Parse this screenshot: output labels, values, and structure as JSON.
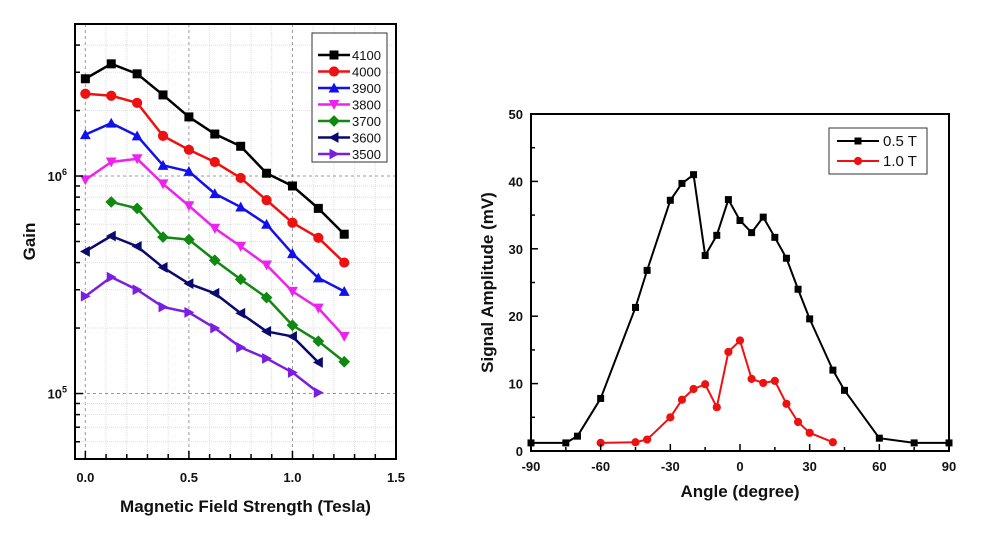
{
  "chart_data": [
    {
      "type": "line",
      "title": "",
      "xlabel": "Magnetic Field Strength (Tesla)",
      "ylabel": "Gain",
      "xscale": "linear",
      "yscale": "log",
      "xlim": [
        -0.05,
        1.5
      ],
      "ylim": [
        50000,
        5000000
      ],
      "xticks": [
        0.0,
        0.5,
        1.0,
        1.5
      ],
      "xtick_labels": [
        "0.0",
        "0.5",
        "1.0",
        "1.5"
      ],
      "yticks": [
        100000,
        1000000
      ],
      "ytick_labels": [
        {
          "base": "10",
          "exp": "5"
        },
        {
          "base": "10",
          "exp": "6"
        }
      ],
      "grid": true,
      "legend_position": "top-right",
      "series": [
        {
          "name": "4100",
          "color": "#000000",
          "marker": "square",
          "x": [
            0,
            0.125,
            0.25,
            0.375,
            0.5,
            0.625,
            0.75,
            0.875,
            1.0,
            1.125,
            1.25
          ],
          "y": [
            2800000,
            3280000,
            2950000,
            2360000,
            1870000,
            1560000,
            1370000,
            1030000,
            900000,
            710000,
            540000
          ]
        },
        {
          "name": "4000",
          "color": "#ee1111",
          "marker": "circle",
          "x": [
            0,
            0.125,
            0.25,
            0.375,
            0.5,
            0.625,
            0.75,
            0.875,
            1.0,
            1.125,
            1.25
          ],
          "y": [
            2390000,
            2340000,
            2170000,
            1530000,
            1320000,
            1160000,
            980000,
            775000,
            610000,
            520000,
            400000
          ]
        },
        {
          "name": "3900",
          "color": "#1111ee",
          "marker": "triangle-up",
          "x": [
            0,
            0.125,
            0.25,
            0.375,
            0.5,
            0.625,
            0.75,
            0.875,
            1.0,
            1.125,
            1.25
          ],
          "y": [
            1550000,
            1750000,
            1530000,
            1120000,
            1050000,
            830000,
            720000,
            600000,
            440000,
            340000,
            295000
          ]
        },
        {
          "name": "3800",
          "color": "#ee22ee",
          "marker": "triangle-down",
          "x": [
            0,
            0.125,
            0.25,
            0.375,
            0.5,
            0.625,
            0.75,
            0.875,
            1.0,
            1.125,
            1.25
          ],
          "y": [
            960000,
            1160000,
            1200000,
            920000,
            730000,
            575000,
            475000,
            390000,
            295000,
            247000,
            183000
          ]
        },
        {
          "name": "3700",
          "color": "#118811",
          "marker": "diamond",
          "x": [
            0.125,
            0.25,
            0.375,
            0.5,
            0.625,
            0.75,
            0.875,
            1.0,
            1.125,
            1.25
          ],
          "y": [
            760000,
            710000,
            524000,
            510000,
            410000,
            335000,
            276000,
            206000,
            174000,
            140000
          ]
        },
        {
          "name": "3600",
          "color": "#0a0a6e",
          "marker": "triangle-left",
          "x": [
            0,
            0.125,
            0.25,
            0.375,
            0.5,
            0.625,
            0.75,
            0.875,
            1.0,
            1.125
          ],
          "y": [
            450000,
            530000,
            475000,
            380000,
            320000,
            289000,
            234000,
            193000,
            183000,
            139000
          ]
        },
        {
          "name": "3500",
          "color": "#7a1ee0",
          "marker": "triangle-right",
          "x": [
            0,
            0.125,
            0.25,
            0.375,
            0.5,
            0.625,
            0.75,
            0.875,
            1.0,
            1.125
          ],
          "y": [
            280000,
            343000,
            300000,
            250000,
            236000,
            200000,
            163000,
            145000,
            125000,
            101000
          ]
        }
      ]
    },
    {
      "type": "line",
      "title": "",
      "xlabel": "Angle (degree)",
      "ylabel": "Signal Amplitude (mV)",
      "xlim": [
        -90,
        90
      ],
      "ylim": [
        0,
        50
      ],
      "xticks": [
        -90,
        -60,
        -30,
        0,
        30,
        60,
        90
      ],
      "xtick_labels": [
        "-90",
        "-60",
        "-30",
        "0",
        "30",
        "60",
        "90"
      ],
      "yticks": [
        0,
        10,
        20,
        30,
        40,
        50
      ],
      "ytick_labels": [
        "0",
        "10",
        "20",
        "30",
        "40",
        "50"
      ],
      "grid": false,
      "legend_position": "top-right",
      "series": [
        {
          "name": "0.5 T",
          "color": "#000000",
          "marker": "square",
          "x": [
            -90,
            -75,
            -70,
            -60,
            -45,
            -40,
            -30,
            -25,
            -20,
            -15,
            -10,
            -5,
            0,
            5,
            10,
            15,
            20,
            25,
            30,
            40,
            45,
            60,
            75,
            90
          ],
          "y": [
            1.2,
            1.2,
            2.2,
            7.8,
            21.3,
            26.8,
            37.2,
            39.7,
            41.0,
            29.0,
            32.0,
            37.3,
            34.2,
            32.4,
            34.7,
            31.7,
            28.6,
            24.0,
            19.6,
            12.0,
            9.0,
            1.9,
            1.2,
            1.2
          ]
        },
        {
          "name": "1.0 T",
          "color": "#ee1111",
          "marker": "circle",
          "x": [
            -60,
            -45,
            -40,
            -30,
            -25,
            -20,
            -15,
            -10,
            -5,
            0,
            5,
            10,
            15,
            20,
            25,
            30,
            40
          ],
          "y": [
            1.2,
            1.3,
            1.7,
            5.0,
            7.6,
            9.2,
            9.9,
            6.5,
            14.7,
            16.4,
            10.7,
            10.1,
            10.4,
            7.0,
            4.3,
            2.7,
            1.3
          ]
        }
      ]
    }
  ]
}
